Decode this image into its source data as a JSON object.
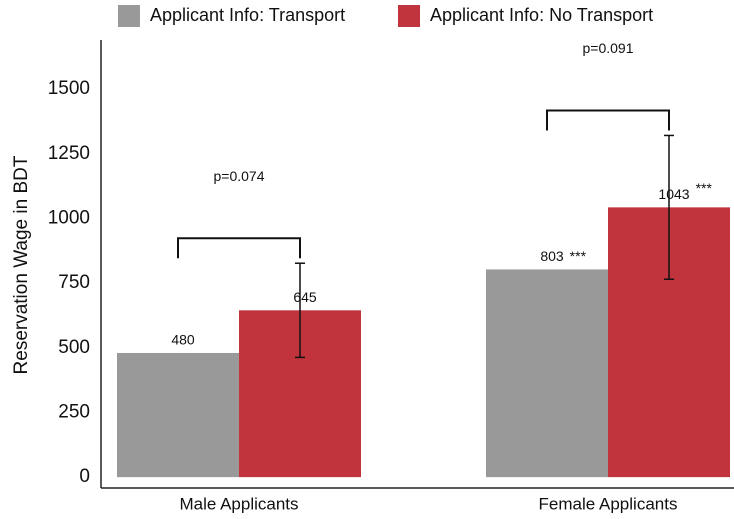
{
  "chart_data": {
    "type": "bar",
    "y_label": "Reservation Wage in BDT",
    "categories": [
      "Male Applicants",
      "Female Applicants"
    ],
    "series": [
      {
        "name": "Applicant Info: Transport",
        "color": "#999999",
        "values": [
          480,
          803
        ]
      },
      {
        "name": "Applicant Info: No Transport",
        "color": "#c1343e",
        "values": [
          645,
          1043
        ],
        "errors": [
          182,
          278
        ]
      }
    ],
    "ylim": [
      -42,
      1690
    ],
    "yticks": [
      0,
      250,
      500,
      750,
      1000,
      1250,
      1500
    ],
    "p_values": [
      "p=0.074",
      "p=0.091"
    ],
    "stars": [
      {
        "series": 0,
        "category": 1,
        "text": "***"
      },
      {
        "series": 1,
        "category": 1,
        "text": "***"
      }
    ],
    "grid": false,
    "legend": "top"
  }
}
